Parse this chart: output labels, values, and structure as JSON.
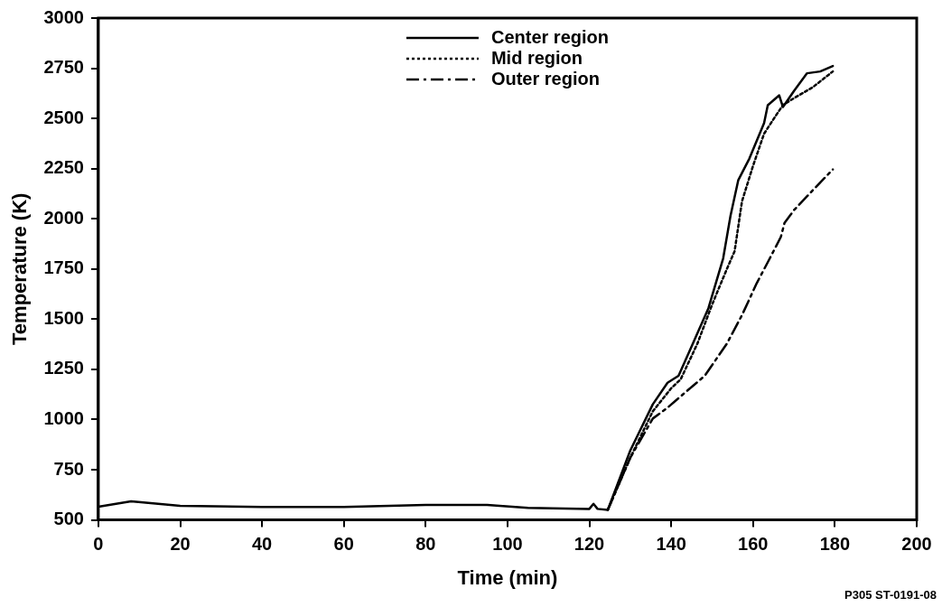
{
  "chart_data": {
    "type": "line",
    "xlabel": "Time (min)",
    "ylabel": "Temperature (K)",
    "xlim": [
      0,
      200
    ],
    "xticks": [
      0,
      20,
      40,
      60,
      80,
      100,
      120,
      140,
      160,
      180,
      200
    ],
    "ylim": [
      500,
      3000
    ],
    "yticks": [
      500,
      750,
      1000,
      1250,
      1500,
      1750,
      2000,
      2250,
      2500,
      2750,
      3000
    ],
    "grid": false,
    "legend": "top",
    "annotations": [
      "P305 ST-0191-08"
    ],
    "series": [
      {
        "name": "Center region",
        "color": "#000000",
        "line_style": "solid",
        "x": [
          0,
          8,
          20,
          40,
          60,
          80,
          95,
          105,
          120,
          121,
          122,
          124.5,
          130,
          135.5,
          139.1,
          141.8,
          144.5,
          149.1,
          152.7,
          154.5,
          156.4,
          159.1,
          162.7,
          163.6,
          166.4,
          167.3,
          170,
          173.2,
          176.4,
          179.5
        ],
        "values": [
          566,
          593,
          570,
          565,
          565,
          575,
          575,
          560,
          555,
          580,
          555,
          550,
          846,
          1076,
          1183,
          1218,
          1342,
          1555,
          1803,
          2016,
          2193,
          2300,
          2477,
          2566,
          2615,
          2557,
          2637,
          2725,
          2734,
          2761
        ]
      },
      {
        "name": "Mid region",
        "color": "#000000",
        "line_style": "dotted",
        "x": [
          124.5,
          130,
          135.5,
          140,
          142.3,
          146.4,
          150,
          153.6,
          155.5,
          157.3,
          160,
          162.7,
          165.5,
          167.3,
          170,
          174.5,
          179.5
        ],
        "values": [
          550,
          810,
          1041,
          1156,
          1200,
          1378,
          1573,
          1750,
          1839,
          2087,
          2264,
          2424,
          2512,
          2566,
          2601,
          2654,
          2734
        ]
      },
      {
        "name": "Outer region",
        "color": "#000000",
        "line_style": "dashed",
        "x": [
          124.5,
          130,
          135.5,
          139.1,
          143.6,
          148.2,
          153.6,
          157.3,
          160.9,
          164.1,
          166.8,
          167.7,
          170,
          174.5,
          179.5
        ],
        "values": [
          550,
          810,
          1005,
          1059,
          1138,
          1218,
          1378,
          1520,
          1679,
          1803,
          1910,
          1980,
          2043,
          2140,
          2246
        ]
      }
    ]
  }
}
